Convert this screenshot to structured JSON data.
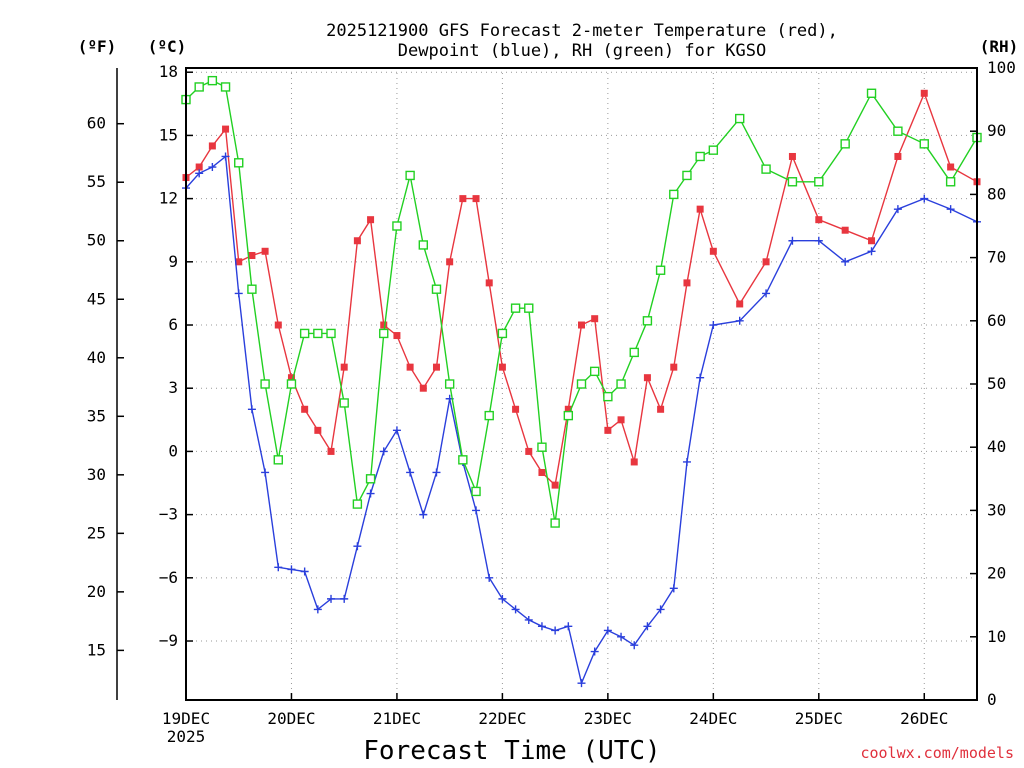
{
  "chart_data": {
    "type": "line",
    "title_line1": "2025121900 GFS Forecast 2-meter Temperature (red),",
    "title_line2": "Dewpoint (blue), RH (green) for KGSO",
    "xlabel": "Forecast Time (UTC)",
    "credit": "coolwx.com/models",
    "unit_f": "(ºF)",
    "unit_c": "(ºC)",
    "unit_rh": "(RH)",
    "x_ticks": [
      "19DEC",
      "20DEC",
      "21DEC",
      "22DEC",
      "23DEC",
      "24DEC",
      "25DEC",
      "26DEC"
    ],
    "x_year": "2025",
    "c_ticks": [
      "18",
      "15",
      "12",
      "9",
      "6",
      "3",
      "0",
      "−3",
      "−6",
      "−9"
    ],
    "f_ticks": [
      "60",
      "55",
      "50",
      "45",
      "40",
      "35",
      "30",
      "25",
      "20",
      "15"
    ],
    "rh_ticks": [
      "100",
      "90",
      "80",
      "70",
      "60",
      "50",
      "40",
      "30",
      "20",
      "10",
      "0"
    ],
    "xlim_days": [
      0,
      7.5
    ],
    "ylim_c": [
      -11.8,
      18.2
    ],
    "ylim_rh": [
      0,
      100
    ],
    "colors": {
      "temp": "#e8363f",
      "dew": "#2a3fdc",
      "rh": "#22d022"
    },
    "series": [
      {
        "name": "Temperature (C)",
        "x": [
          0,
          0.125,
          0.25,
          0.375,
          0.5,
          0.625,
          0.75,
          0.875,
          1,
          1.125,
          1.25,
          1.375,
          1.5,
          1.625,
          1.75,
          1.875,
          2,
          2.125,
          2.25,
          2.375,
          2.5,
          2.625,
          2.75,
          2.875,
          3,
          3.125,
          3.25,
          3.375,
          3.5,
          3.625,
          3.75,
          3.875,
          4,
          4.125,
          4.25,
          4.375,
          4.5,
          4.625,
          4.75,
          4.875,
          5,
          5.25,
          5.5,
          5.75,
          6,
          6.25,
          6.5,
          6.75,
          7,
          7.25,
          7.5
        ],
        "values": [
          13.0,
          13.5,
          14.5,
          15.3,
          9.0,
          9.3,
          9.5,
          6.0,
          3.5,
          2.0,
          1.0,
          0.0,
          4.0,
          10.0,
          11.0,
          6.0,
          5.5,
          4.0,
          3.0,
          4.0,
          9.0,
          12.0,
          12.0,
          8.0,
          4.0,
          2.0,
          0.0,
          -1.0,
          -1.6,
          2.0,
          6.0,
          6.3,
          1.0,
          1.5,
          -0.5,
          3.5,
          2.0,
          4.0,
          8.0,
          11.5,
          9.5,
          7.0,
          9.0,
          14.0,
          11.0,
          10.5,
          10.0,
          14.0,
          17.0,
          13.5,
          12.8
        ]
      },
      {
        "name": "Dewpoint (C)",
        "x": [
          0,
          0.125,
          0.25,
          0.375,
          0.5,
          0.625,
          0.75,
          0.875,
          1,
          1.125,
          1.25,
          1.375,
          1.5,
          1.625,
          1.75,
          1.875,
          2,
          2.125,
          2.25,
          2.375,
          2.5,
          2.625,
          2.75,
          2.875,
          3,
          3.125,
          3.25,
          3.375,
          3.5,
          3.625,
          3.75,
          3.875,
          4,
          4.125,
          4.25,
          4.375,
          4.5,
          4.625,
          4.75,
          4.875,
          5,
          5.25,
          5.5,
          5.75,
          6,
          6.25,
          6.5,
          6.75,
          7,
          7.25,
          7.5
        ],
        "values": [
          12.5,
          13.2,
          13.5,
          14.0,
          7.5,
          2.0,
          -1.0,
          -5.5,
          -5.6,
          -5.7,
          -7.5,
          -7.0,
          -7.0,
          -4.5,
          -2.0,
          0.0,
          1.0,
          -1.0,
          -3.0,
          -1.0,
          2.5,
          -0.5,
          -2.8,
          -6.0,
          -7.0,
          -7.5,
          -8.0,
          -8.3,
          -8.5,
          -8.3,
          -11.0,
          -9.5,
          -8.5,
          -8.8,
          -9.2,
          -8.3,
          -7.5,
          -6.5,
          -0.5,
          3.5,
          6.0,
          6.2,
          7.5,
          10.0,
          10.0,
          9.0,
          9.5,
          11.5,
          12.0,
          11.5,
          10.9
        ]
      },
      {
        "name": "RH (%)",
        "x": [
          0,
          0.125,
          0.25,
          0.375,
          0.5,
          0.625,
          0.75,
          0.875,
          1,
          1.125,
          1.25,
          1.375,
          1.5,
          1.625,
          1.75,
          1.875,
          2,
          2.125,
          2.25,
          2.375,
          2.5,
          2.625,
          2.75,
          2.875,
          3,
          3.125,
          3.25,
          3.375,
          3.5,
          3.625,
          3.75,
          3.875,
          4,
          4.125,
          4.25,
          4.375,
          4.5,
          4.625,
          4.75,
          4.875,
          5,
          5.25,
          5.5,
          5.75,
          6,
          6.25,
          6.5,
          6.75,
          7,
          7.25,
          7.5
        ],
        "values": [
          95,
          97,
          98,
          97,
          85,
          65,
          50,
          38,
          50,
          58,
          58,
          58,
          47,
          31,
          35,
          58,
          75,
          83,
          72,
          65,
          50,
          38,
          33,
          45,
          58,
          62,
          62,
          40,
          28,
          45,
          50,
          52,
          48,
          50,
          55,
          60,
          68,
          80,
          83,
          86,
          87,
          92,
          84,
          82,
          82,
          88,
          96,
          90,
          88,
          82,
          89
        ]
      }
    ]
  }
}
